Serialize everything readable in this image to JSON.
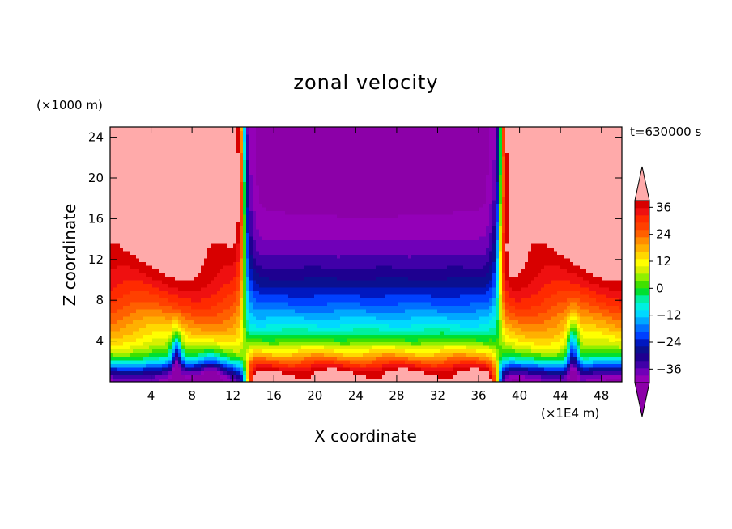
{
  "chart_data": {
    "type": "heatmap",
    "title": "zonal velocity",
    "xlabel": "X coordinate",
    "ylabel": "Z coordinate",
    "x_unit": "(×1E4 m)",
    "z_unit": "(×1000 m)",
    "time_label": "t=630000 s",
    "xlim": [
      0,
      50
    ],
    "ylim": [
      0,
      25
    ],
    "x_ticks": [
      4,
      8,
      12,
      16,
      20,
      24,
      28,
      32,
      36,
      40,
      44,
      48
    ],
    "y_ticks": [
      4,
      8,
      12,
      16,
      20,
      24
    ],
    "colorbar": {
      "min": -42,
      "max": 42,
      "step": 3,
      "ticks": [
        36,
        24,
        12,
        0,
        -12,
        -24,
        -36
      ],
      "tick_labels": [
        "36",
        "24",
        "12",
        "0",
        "−12",
        "−24",
        "−36"
      ],
      "colors": [
        "#9400b8",
        "#7000b8",
        "#4000a8",
        "#1e0090",
        "#0a1090",
        "#0018c0",
        "#0040ff",
        "#0070ff",
        "#00a8ff",
        "#00d8ff",
        "#00f0e0",
        "#00f0a0",
        "#00e030",
        "#40e000",
        "#90f000",
        "#d8f000",
        "#ffff00",
        "#ffd800",
        "#ffb000",
        "#ff8c00",
        "#ff6000",
        "#ff4000",
        "#ff2a00",
        "#ef1010",
        "#d80000",
        "#ffaaaa"
      ],
      "under_color": "#8c00a8",
      "over_color": "#ffaaaa"
    }
  }
}
